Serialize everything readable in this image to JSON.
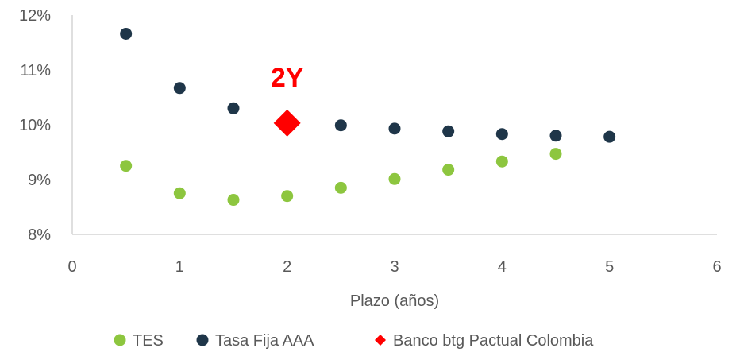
{
  "chart_data": {
    "type": "scatter",
    "title": "",
    "xlabel": "Plazo (años)",
    "ylabel": "",
    "xlim": [
      0,
      6
    ],
    "ylim": [
      8,
      12
    ],
    "x_ticks": [
      "0",
      "1",
      "2",
      "3",
      "4",
      "5",
      "6"
    ],
    "y_ticks": [
      "8%",
      "9%",
      "10%",
      "11%",
      "12%"
    ],
    "grid": false,
    "legend_position": "bottom",
    "series": [
      {
        "name": "TES",
        "marker": "circle",
        "color": "#8DC63F",
        "points": [
          {
            "x": 0.5,
            "y": 9.25
          },
          {
            "x": 1.0,
            "y": 8.75
          },
          {
            "x": 1.5,
            "y": 8.63
          },
          {
            "x": 2.0,
            "y": 8.7
          },
          {
            "x": 2.5,
            "y": 8.85
          },
          {
            "x": 3.0,
            "y": 9.01
          },
          {
            "x": 3.5,
            "y": 9.18
          },
          {
            "x": 4.0,
            "y": 9.33
          },
          {
            "x": 4.5,
            "y": 9.47
          }
        ]
      },
      {
        "name": "Tasa Fija AAA",
        "marker": "circle",
        "color": "#1F3649",
        "points": [
          {
            "x": 0.5,
            "y": 11.66
          },
          {
            "x": 1.0,
            "y": 10.67
          },
          {
            "x": 1.5,
            "y": 10.3
          },
          {
            "x": 2.5,
            "y": 9.99
          },
          {
            "x": 3.0,
            "y": 9.93
          },
          {
            "x": 3.5,
            "y": 9.88
          },
          {
            "x": 4.0,
            "y": 9.83
          },
          {
            "x": 4.5,
            "y": 9.8
          },
          {
            "x": 5.0,
            "y": 9.78
          }
        ]
      },
      {
        "name": "Banco btg Pactual Colombia",
        "marker": "diamond",
        "color": "#FF0000",
        "points": [
          {
            "x": 2.0,
            "y": 10.03
          }
        ]
      }
    ],
    "annotations": [
      {
        "text": "2Y",
        "x": 2.0,
        "color": "#FF0000"
      }
    ]
  }
}
